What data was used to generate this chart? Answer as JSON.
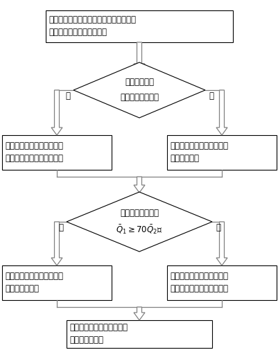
{
  "bg_color": "#ffffff",
  "box1_text": "确定煤层赋存区域地质条件、煤的变质程\n度、煤的种类及瓦斯参数；",
  "diamond1_text_l1": "煤层是否位于",
  "diamond1_text_l2": "断层、褶曲部位？",
  "box2_text": "二氧化碳爆破或高压水爆实\n现含瓦斯煤体的一级增透；",
  "box3_text": "采取水力压裂实现含瓦斯煤\n体一级增透；",
  "diamond2_text_top": "一级增透效果检验",
  "diamond2_text_bot": "$\\bar{Q}_1\\geq70\\bar{Q}_2$？",
  "box4_text": "利用一级增透的方案对整个\n煤层进行增透；",
  "box5_text": "在一级增透的基础上对含瓦\n斯煤体进行二级酸化增透；",
  "box6_text": "接入抽采系统对含瓦斯煤体\n进行瓦斯抽采。",
  "yes_label": "是",
  "no_label": "否",
  "arrow_gray": "#808080",
  "edge_color": "#000000",
  "text_color": "#000000"
}
